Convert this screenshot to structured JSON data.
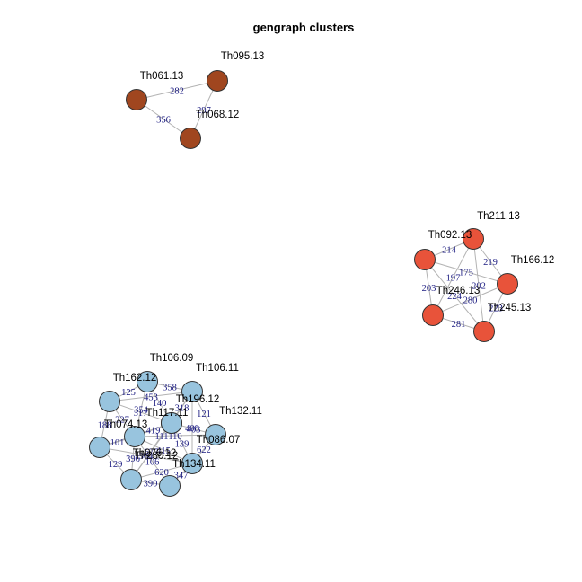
{
  "title": "gengraph clusters",
  "clusters": [
    {
      "color": "#A0461F",
      "nodes": [
        {
          "id": "Th061.13",
          "label": "Th061.13"
        },
        {
          "id": "Th095.13",
          "label": "Th095.13"
        },
        {
          "id": "Th068.12",
          "label": "Th068.12"
        }
      ],
      "edges": [
        {
          "source": "Th061.13",
          "target": "Th095.13",
          "label": "282"
        },
        {
          "source": "Th095.13",
          "target": "Th068.12",
          "label": "297"
        },
        {
          "source": "Th061.13",
          "target": "Th068.12",
          "label": "356"
        }
      ]
    },
    {
      "color": "#E8533A",
      "nodes": [
        {
          "id": "Th211.13",
          "label": "Th211.13"
        },
        {
          "id": "Th092.13",
          "label": "Th092.13"
        },
        {
          "id": "Th166.12",
          "label": "Th166.12"
        },
        {
          "id": "Th246.13",
          "label": "Th246.13"
        },
        {
          "id": "Th245.13",
          "label": "Th245.13"
        }
      ],
      "edges": [
        {
          "source": "Th092.13",
          "target": "Th211.13",
          "label": "214"
        },
        {
          "source": "Th211.13",
          "target": "Th166.12",
          "label": "219"
        },
        {
          "source": "Th092.13",
          "target": "Th166.12",
          "label": "175"
        },
        {
          "source": "Th092.13",
          "target": "Th246.13",
          "label": "203"
        },
        {
          "source": "Th092.13",
          "target": "Th245.13",
          "label": "224"
        },
        {
          "source": "Th246.13",
          "target": "Th166.12",
          "label": "280"
        },
        {
          "source": "Th211.13",
          "target": "Th246.13",
          "label": "197"
        },
        {
          "source": "Th211.13",
          "target": "Th245.13",
          "label": "202"
        },
        {
          "source": "Th166.12",
          "target": "Th245.13",
          "label": "223"
        },
        {
          "source": "Th246.13",
          "target": "Th245.13",
          "label": "281"
        }
      ]
    },
    {
      "color": "#98C4DE",
      "nodes": [
        {
          "id": "Th106.09",
          "label": "Th106.09"
        },
        {
          "id": "Th106.11",
          "label": "Th106.11"
        },
        {
          "id": "Th162.12",
          "label": "Th162.12"
        },
        {
          "id": "Th196.12",
          "label": "Th196.12"
        },
        {
          "id": "Th132.11",
          "label": "Th132.11"
        },
        {
          "id": "Th117.11",
          "label": "Th117.11"
        },
        {
          "id": "Th074.13",
          "label": "Th074.13"
        },
        {
          "id": "Th086.07",
          "label": "Th086.07"
        },
        {
          "id": "Th230.12",
          "label": "Th230.12"
        },
        {
          "id": "Th134.11",
          "label": "Th134.11"
        },
        {
          "id": "Th076.12",
          "label": "Th076.12"
        }
      ],
      "edges": [
        {
          "source": "Th162.12",
          "target": "Th106.09",
          "label": "125"
        },
        {
          "source": "Th106.09",
          "target": "Th106.11",
          "label": "358"
        },
        {
          "source": "Th162.12",
          "target": "Th106.11",
          "label": "453"
        },
        {
          "source": "Th106.09",
          "target": "Th196.12",
          "label": "140"
        },
        {
          "source": "Th106.11",
          "target": "Th196.12",
          "label": "318"
        },
        {
          "source": "Th196.12",
          "target": "Th132.11",
          "label": "403"
        },
        {
          "source": "Th162.12",
          "target": "Th074.13",
          "label": "327"
        },
        {
          "source": "Th162.12",
          "target": "Th076.12",
          "label": "188"
        },
        {
          "source": "Th106.09",
          "target": "Th074.13",
          "label": "354"
        },
        {
          "source": "Th162.12",
          "target": "Th196.12",
          "label": "317"
        },
        {
          "source": "Th106.11",
          "target": "Th132.11",
          "label": "121"
        },
        {
          "source": "Th106.11",
          "target": "Th134.11",
          "label": "408"
        },
        {
          "source": "Th196.12",
          "target": "Th134.11",
          "label": "139"
        },
        {
          "source": "Th074.13",
          "target": "Th196.12",
          "label": "419"
        },
        {
          "source": "Th074.13",
          "target": "Th132.11",
          "label": "110"
        },
        {
          "source": "Th196.12",
          "target": "Th230.12",
          "label": "677"
        },
        {
          "source": "Th132.11",
          "target": "Th134.11",
          "label": "622"
        },
        {
          "source": "Th076.12",
          "target": "Th074.13",
          "label": "101"
        },
        {
          "source": "Th076.12",
          "target": "Th196.12",
          "label": "161"
        },
        {
          "source": "Th074.13",
          "target": "Th230.12",
          "label": "396"
        },
        {
          "source": "Th074.13",
          "target": "Th134.11",
          "label": "415"
        },
        {
          "source": "Th076.12",
          "target": "Th230.12",
          "label": "129"
        },
        {
          "source": "Th076.12",
          "target": "Th134.11",
          "label": "364"
        },
        {
          "source": "Th230.12",
          "target": "Th134.11",
          "label": "620"
        },
        {
          "source": "Th230.12",
          "target": "Th106.11",
          "label": "111"
        },
        {
          "source": "Th074.13",
          "target": "Th086.07",
          "label": "106"
        },
        {
          "source": "Th230.12",
          "target": "Th086.07",
          "label": "390"
        },
        {
          "source": "Th134.11",
          "target": "Th086.07",
          "label": "347"
        }
      ]
    }
  ]
}
